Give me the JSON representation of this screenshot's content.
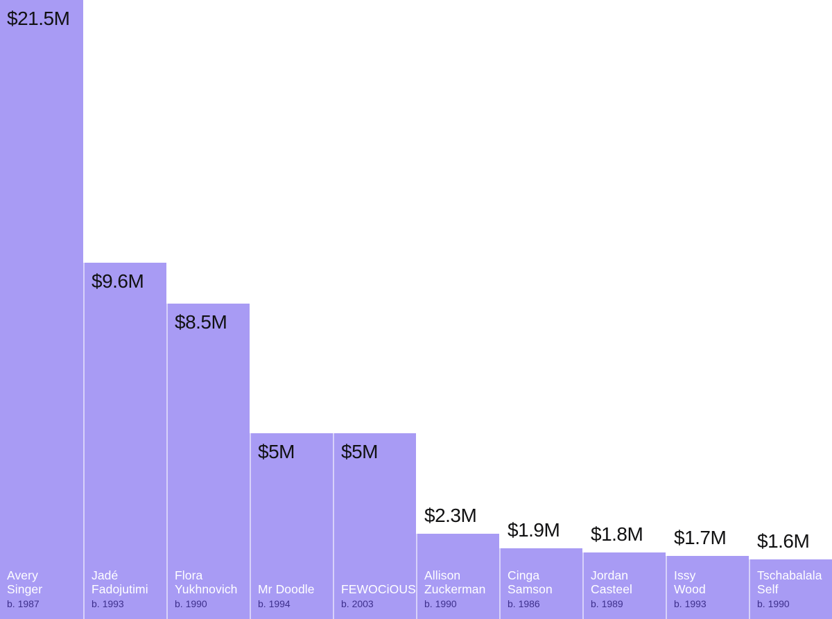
{
  "colors": {
    "background": "#ffffff",
    "bar": "#a89bf4",
    "value_text": "#111112",
    "artist_name_text": "#ffffff",
    "birth_year_text": "#3d2f8c"
  },
  "chart_data": {
    "type": "bar",
    "title": "",
    "xlabel": "",
    "ylabel": "",
    "unit": "USD millions",
    "categories": [
      "Avery Singer",
      "Jadé Fadojutimi",
      "Flora Yukhnovich",
      "Mr Doodle",
      "FEWOCiOUS",
      "Allison Zuckerman",
      "Cinga Samson",
      "Jordan Casteel",
      "Issy Wood",
      "Tschabalala Self"
    ],
    "values": [
      21.5,
      9.6,
      8.5,
      5,
      5,
      2.3,
      1.9,
      1.8,
      1.7,
      1.6
    ],
    "value_labels": [
      "$21.5M",
      "$9.6M",
      "$8.5M",
      "$5M",
      "$5M",
      "$2.3M",
      "$1.9M",
      "$1.8M",
      "$1.7M",
      "$1.6M"
    ],
    "birth_years": [
      "b. 1987",
      "b. 1993",
      "b. 1990",
      "b. 1994",
      "b. 2003",
      "b. 1990",
      "b. 1986",
      "b. 1989",
      "b. 1993",
      "b. 1990"
    ],
    "grid": false,
    "legend": false,
    "tallest_bar_clipped_at_top": true
  },
  "bars": [
    {
      "name": "Avery Singer",
      "name_lines": "Avery\nSinger",
      "born": "b. 1987",
      "value": 21.5,
      "value_label": "$21.5M",
      "label_placement": "inside"
    },
    {
      "name": "Jadé Fadojutimi",
      "name_lines": "Jadé\nFadojutimi",
      "born": "b. 1993",
      "value": 9.6,
      "value_label": "$9.6M",
      "label_placement": "inside"
    },
    {
      "name": "Flora Yukhnovich",
      "name_lines": "Flora\nYukhnovich",
      "born": "b. 1990",
      "value": 8.5,
      "value_label": "$8.5M",
      "label_placement": "inside"
    },
    {
      "name": "Mr Doodle",
      "name_lines": "Mr Doodle",
      "born": "b. 1994",
      "value": 5,
      "value_label": "$5M",
      "label_placement": "inside"
    },
    {
      "name": "FEWOCiOUS",
      "name_lines": "FEWOCiOUS",
      "born": "b. 2003",
      "value": 5,
      "value_label": "$5M",
      "label_placement": "inside"
    },
    {
      "name": "Allison Zuckerman",
      "name_lines": "Allison\nZuckerman",
      "born": "b. 1990",
      "value": 2.3,
      "value_label": "$2.3M",
      "label_placement": "above"
    },
    {
      "name": "Cinga Samson",
      "name_lines": "Cinga\nSamson",
      "born": "b. 1986",
      "value": 1.9,
      "value_label": "$1.9M",
      "label_placement": "above"
    },
    {
      "name": "Jordan Casteel",
      "name_lines": "Jordan\nCasteel",
      "born": "b. 1989",
      "value": 1.8,
      "value_label": "$1.8M",
      "label_placement": "above"
    },
    {
      "name": "Issy Wood",
      "name_lines": "Issy\nWood",
      "born": "b. 1993",
      "value": 1.7,
      "value_label": "$1.7M",
      "label_placement": "above"
    },
    {
      "name": "Tschabalala Self",
      "name_lines": "Tschabalala\nSelf",
      "born": "b. 1990",
      "value": 1.6,
      "value_label": "$1.6M",
      "label_placement": "above"
    }
  ]
}
